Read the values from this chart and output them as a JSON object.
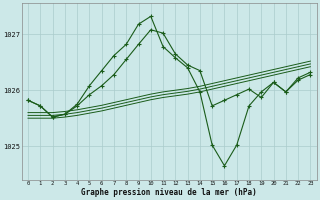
{
  "background_color": "#cce8e8",
  "grid_color": "#aacccc",
  "dark_green": "#1a5c1a",
  "ylim": [
    1024.4,
    1027.55
  ],
  "yticks": [
    1025,
    1026,
    1027
  ],
  "xticks": [
    0,
    1,
    2,
    3,
    4,
    5,
    6,
    7,
    8,
    9,
    10,
    11,
    12,
    13,
    14,
    15,
    16,
    17,
    18,
    19,
    20,
    21,
    22,
    23
  ],
  "xlabel": "Graphe pression niveau de la mer (hPa)",
  "series_spiky": [
    1025.82,
    1025.72,
    1025.52,
    1025.57,
    1025.75,
    1026.08,
    1026.35,
    1026.62,
    1026.82,
    1027.18,
    1027.32,
    1026.78,
    1026.58,
    1026.4,
    1025.97,
    1025.02,
    1024.65,
    1025.02,
    1025.72,
    1025.97,
    1026.14,
    1025.97,
    1026.22,
    1026.32
  ],
  "series_main": [
    1025.82,
    1025.72,
    1025.52,
    1025.57,
    1025.72,
    1025.92,
    1026.08,
    1026.28,
    1026.55,
    1026.82,
    1027.08,
    1027.02,
    1026.65,
    1026.45,
    1026.35,
    1025.72,
    1025.82,
    1025.92,
    1026.02,
    1025.87,
    1026.14,
    1025.97,
    1026.18,
    1026.28
  ],
  "series_flat1": [
    1025.55,
    1025.55,
    1025.55,
    1025.57,
    1025.6,
    1025.64,
    1025.68,
    1025.73,
    1025.78,
    1025.83,
    1025.88,
    1025.92,
    1025.95,
    1025.98,
    1026.02,
    1026.07,
    1026.12,
    1026.17,
    1026.22,
    1026.27,
    1026.32,
    1026.37,
    1026.42,
    1026.47
  ],
  "series_flat2": [
    1025.6,
    1025.6,
    1025.6,
    1025.62,
    1025.65,
    1025.69,
    1025.73,
    1025.78,
    1025.83,
    1025.88,
    1025.93,
    1025.97,
    1026.0,
    1026.03,
    1026.07,
    1026.12,
    1026.17,
    1026.22,
    1026.27,
    1026.32,
    1026.37,
    1026.42,
    1026.47,
    1026.52
  ],
  "series_flat3": [
    1025.5,
    1025.5,
    1025.5,
    1025.52,
    1025.55,
    1025.59,
    1025.63,
    1025.68,
    1025.73,
    1025.78,
    1025.83,
    1025.87,
    1025.9,
    1025.93,
    1025.97,
    1026.02,
    1026.07,
    1026.12,
    1026.17,
    1026.22,
    1026.27,
    1026.32,
    1026.37,
    1026.42
  ]
}
